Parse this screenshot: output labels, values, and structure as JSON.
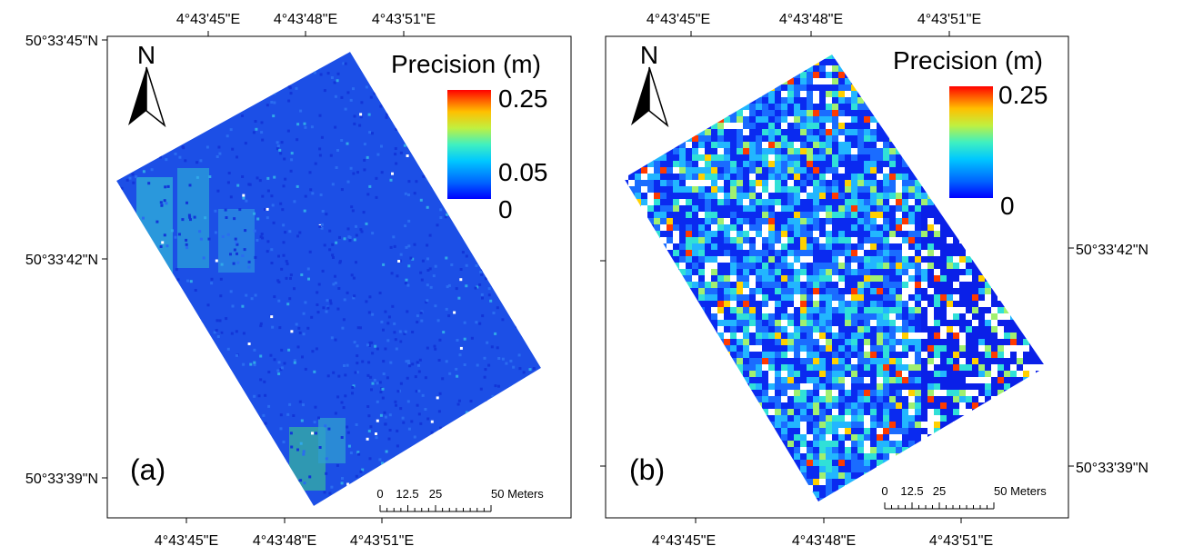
{
  "panels": [
    {
      "label": "(a)",
      "legend": {
        "title": "Precision (m)",
        "max": "0.25",
        "mid": "0.05",
        "min": "0"
      },
      "top_lon_labels": [
        "4°43'45\"E",
        "4°43'48\"E",
        "4°43'51\"E"
      ],
      "bottom_lon_labels": [
        "4°43'45\"E",
        "4°43'48\"E",
        "4°43'51\"E"
      ],
      "lat_labels": [
        "50°33'45\"N",
        "50°33'42\"N",
        "50°33'39\"N"
      ],
      "north": "N",
      "scale_bar": {
        "labels": [
          "0",
          "12.5",
          "25",
          "50 Meters"
        ]
      }
    },
    {
      "label": "(b)",
      "legend": {
        "title": "Precision (m)",
        "max": "0.25",
        "min": "0"
      },
      "top_lon_labels": [
        "4°43'45\"E",
        "4°43'48\"E",
        "4°43'51\"E"
      ],
      "bottom_lon_labels": [
        "4°43'45\"E",
        "4°43'48\"E",
        "4°43'51\"E"
      ],
      "lat_labels": [
        "50°33'42\"N",
        "50°33'39\"N"
      ],
      "north": "N",
      "scale_bar": {
        "labels": [
          "0",
          "12.5",
          "25",
          "50 Meters"
        ]
      }
    }
  ],
  "colors": {
    "ramp": [
      "#0000ff",
      "#0050ff",
      "#00b4ff",
      "#20e0d0",
      "#a0f070",
      "#f0e020",
      "#ff7000",
      "#ff0000"
    ],
    "raster_a_base": "#1a4fe0",
    "raster_b_base": "#2a7fff"
  }
}
